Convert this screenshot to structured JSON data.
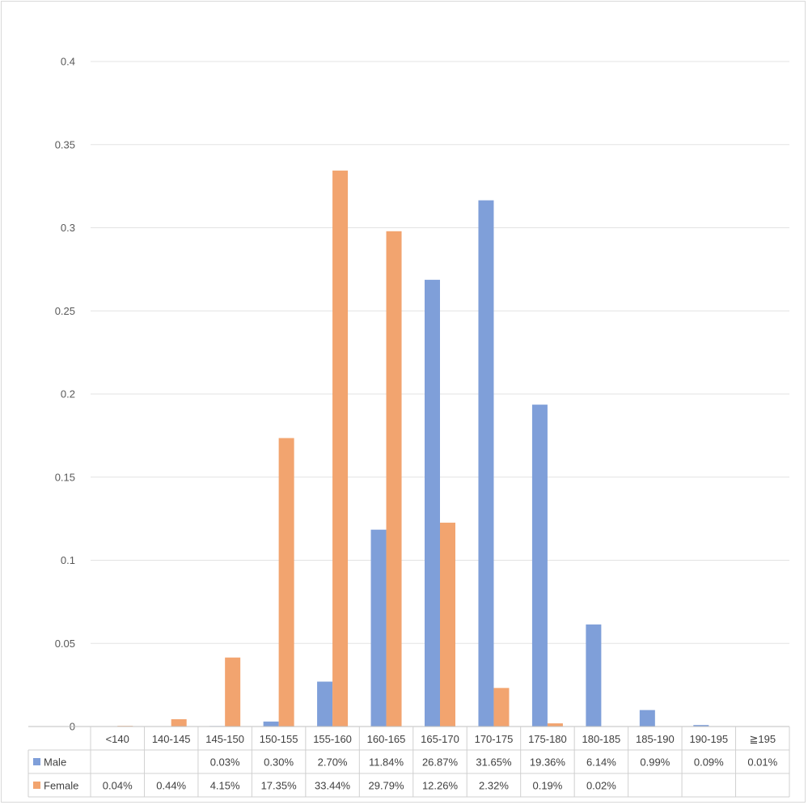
{
  "chart_data": {
    "type": "bar",
    "categories": [
      "<140",
      "140-145",
      "145-150",
      "150-155",
      "155-160",
      "160-165",
      "165-170",
      "170-175",
      "175-180",
      "180-185",
      "185-190",
      "190-195",
      "≧195"
    ],
    "series": [
      {
        "name": "Male",
        "values": [
          null,
          null,
          0.0003,
          0.003,
          0.027,
          0.1184,
          0.2687,
          0.3165,
          0.1936,
          0.0614,
          0.0099,
          0.0009,
          0.0001
        ],
        "labels": [
          "",
          "",
          "0.03%",
          "0.30%",
          "2.70%",
          "11.84%",
          "26.87%",
          "31.65%",
          "19.36%",
          "6.14%",
          "0.99%",
          "0.09%",
          "0.01%"
        ],
        "color": "#7f9fd9"
      },
      {
        "name": "Female",
        "values": [
          0.0004,
          0.0044,
          0.0415,
          0.1735,
          0.3344,
          0.2979,
          0.1226,
          0.0232,
          0.0019,
          0.0002,
          null,
          null,
          null
        ],
        "labels": [
          "0.04%",
          "0.44%",
          "4.15%",
          "17.35%",
          "33.44%",
          "29.79%",
          "12.26%",
          "2.32%",
          "0.19%",
          "0.02%",
          "",
          "",
          ""
        ],
        "color": "#f2a46f"
      }
    ],
    "yticks": [
      "0",
      "0.05",
      "0.1",
      "0.15",
      "0.2",
      "0.25",
      "0.3",
      "0.35",
      "0.4"
    ],
    "ylim": [
      0,
      0.4
    ],
    "grid": true,
    "legend": "data table",
    "data_table": true
  }
}
